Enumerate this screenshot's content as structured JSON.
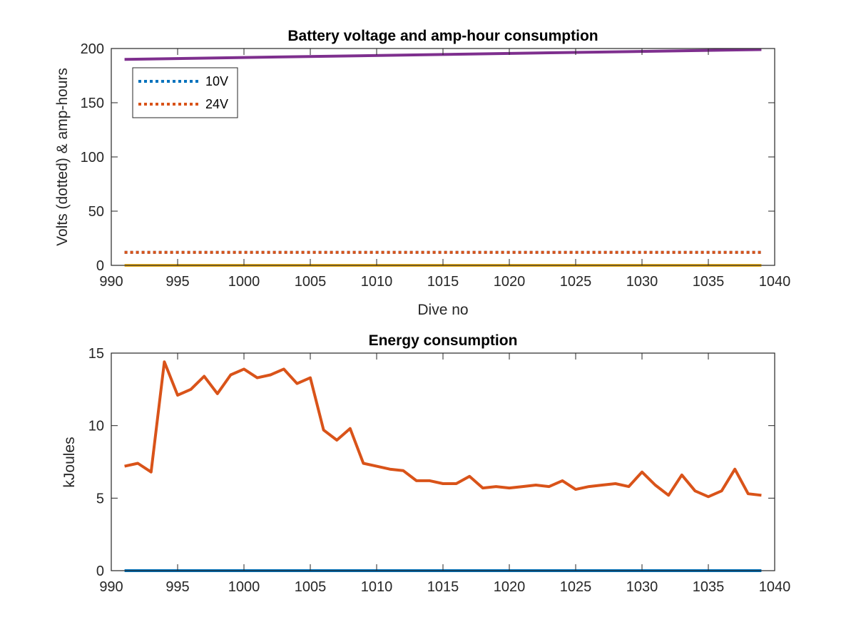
{
  "chart_data": [
    {
      "type": "line",
      "title": "Battery voltage and amp-hour consumption",
      "xlabel": "Dive no",
      "ylabel": "Volts (dotted) & amp-hours",
      "xlim": [
        990,
        1040
      ],
      "ylim": [
        0,
        200
      ],
      "xticks": [
        990,
        995,
        1000,
        1005,
        1010,
        1015,
        1020,
        1025,
        1030,
        1035,
        1040
      ],
      "yticks": [
        0,
        50,
        100,
        150,
        200
      ],
      "grid": false,
      "legend_position": "top-left",
      "legend": [
        "10V",
        "24V"
      ],
      "series": [
        {
          "name": "10V",
          "style": "dotted",
          "color": "#0072BD",
          "x": [
            991,
            1039
          ],
          "y": [
            12,
            12
          ]
        },
        {
          "name": "24V",
          "style": "dotted",
          "color": "#D95319",
          "x": [
            991,
            1039
          ],
          "y": [
            12,
            12
          ]
        },
        {
          "style": "solid",
          "color": "#EDB120",
          "x": [
            991,
            1039
          ],
          "y": [
            0,
            0
          ]
        },
        {
          "style": "solid",
          "color": "#7E2F8E",
          "x": [
            991,
            1039
          ],
          "y": [
            190,
            199
          ]
        }
      ]
    },
    {
      "type": "line",
      "title": "Energy consumption",
      "xlabel": "",
      "ylabel": "kJoules",
      "xlim": [
        990,
        1040
      ],
      "ylim": [
        0,
        15
      ],
      "xticks": [
        990,
        995,
        1000,
        1005,
        1010,
        1015,
        1020,
        1025,
        1030,
        1035,
        1040
      ],
      "yticks": [
        0,
        5,
        10,
        15
      ],
      "grid": false,
      "series": [
        {
          "style": "solid",
          "color": "#0072BD",
          "x": [
            991,
            1039
          ],
          "y": [
            0,
            0
          ]
        },
        {
          "style": "solid",
          "color": "#D95319",
          "x": [
            991,
            992,
            993,
            994,
            995,
            996,
            997,
            998,
            999,
            1000,
            1001,
            1002,
            1003,
            1004,
            1005,
            1006,
            1007,
            1008,
            1009,
            1010,
            1011,
            1012,
            1013,
            1014,
            1015,
            1016,
            1017,
            1018,
            1019,
            1020,
            1021,
            1022,
            1023,
            1024,
            1025,
            1026,
            1027,
            1028,
            1029,
            1030,
            1031,
            1032,
            1033,
            1034,
            1035,
            1036,
            1037,
            1038,
            1039
          ],
          "y": [
            7.2,
            7.4,
            6.8,
            14.4,
            12.1,
            12.5,
            13.4,
            12.2,
            13.5,
            13.9,
            13.3,
            13.5,
            13.9,
            12.9,
            13.3,
            9.7,
            9.0,
            9.8,
            7.4,
            7.2,
            7.0,
            6.9,
            6.2,
            6.2,
            6.0,
            6.0,
            6.5,
            5.7,
            5.8,
            5.7,
            5.8,
            5.9,
            5.8,
            6.2,
            5.6,
            5.8,
            5.9,
            6.0,
            5.8,
            6.8,
            5.9,
            5.2,
            6.6,
            5.5,
            5.1,
            5.5,
            7.0,
            5.3,
            5.2
          ]
        }
      ]
    }
  ]
}
